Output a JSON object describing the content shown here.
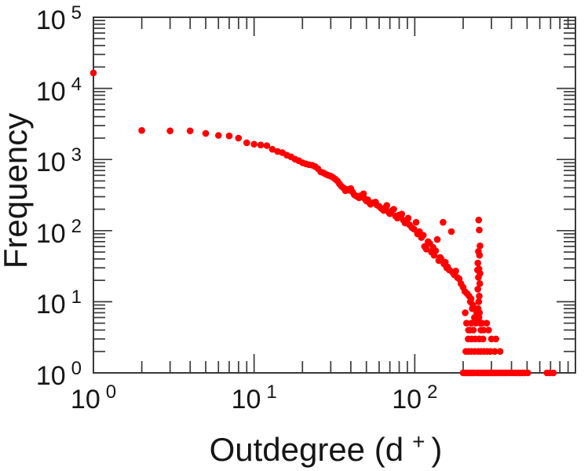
{
  "figure": {
    "background": "#ffffff"
  },
  "chart_data": {
    "type": "scatter",
    "title": "",
    "labels": {
      "ylabel": "Frequency",
      "xlabel_main": "Outdegree (d",
      "xlabel_sup": "+",
      "xlabel_close": ")",
      "xlabel_full": "Outdegree (d+)"
    },
    "x_scale": "log",
    "y_scale": "log",
    "xlim": [
      1,
      1000
    ],
    "ylim": [
      1,
      100000
    ],
    "tick_base": "10",
    "x_tick_exponents": [
      0,
      1,
      2
    ],
    "x_major_tick_exponents": [
      0,
      1,
      2,
      3
    ],
    "y_tick_exponents": [
      0,
      1,
      2,
      3,
      4,
      5
    ],
    "y_major_tick_exponents": [
      0,
      1,
      2,
      3,
      4,
      5
    ],
    "x_minor_decades": [
      0,
      1,
      2
    ],
    "y_minor_decades": [
      0,
      1,
      2,
      3,
      4
    ],
    "grid": false,
    "legend": "none",
    "background": "#ffffff",
    "axis_color": "#3a3a3a",
    "text_color": "#161616",
    "marker": {
      "shape": "circle",
      "color": "#ff0000",
      "radius_px": 4.3
    },
    "points": [
      [
        1,
        16500
      ],
      [
        2,
        2560
      ],
      [
        3,
        2530
      ],
      [
        4,
        2530
      ],
      [
        5,
        2330
      ],
      [
        6,
        2180
      ],
      [
        7,
        2150
      ],
      [
        8,
        2000
      ],
      [
        9,
        1720
      ],
      [
        10,
        1640
      ],
      [
        11,
        1600
      ],
      [
        12,
        1570
      ],
      [
        13,
        1390
      ],
      [
        14,
        1300
      ],
      [
        15,
        1250
      ],
      [
        16,
        1150
      ],
      [
        17,
        1090
      ],
      [
        18,
        1010
      ],
      [
        19,
        960
      ],
      [
        20,
        900
      ],
      [
        21,
        870
      ],
      [
        22,
        845
      ],
      [
        23,
        830
      ],
      [
        24,
        795
      ],
      [
        25,
        740
      ],
      [
        26,
        670
      ],
      [
        27,
        650
      ],
      [
        28,
        620
      ],
      [
        29,
        600
      ],
      [
        30,
        585
      ],
      [
        31,
        560
      ],
      [
        32,
        530
      ],
      [
        33,
        500
      ],
      [
        34,
        455
      ],
      [
        35,
        420
      ],
      [
        36,
        400
      ],
      [
        37,
        365
      ],
      [
        38,
        380
      ],
      [
        39,
        370
      ],
      [
        40,
        390
      ],
      [
        41,
        350
      ],
      [
        42,
        320
      ],
      [
        43,
        310
      ],
      [
        44,
        300
      ],
      [
        45,
        290
      ],
      [
        46,
        310
      ],
      [
        47,
        300
      ],
      [
        48,
        330
      ],
      [
        49,
        280
      ],
      [
        50,
        262
      ],
      [
        51,
        272
      ],
      [
        52,
        250
      ],
      [
        53,
        235
      ],
      [
        55,
        246
      ],
      [
        57,
        252
      ],
      [
        58,
        230
      ],
      [
        60,
        220
      ],
      [
        62,
        205
      ],
      [
        64,
        192
      ],
      [
        66,
        212
      ],
      [
        67,
        226
      ],
      [
        69,
        180
      ],
      [
        70,
        173
      ],
      [
        72,
        190
      ],
      [
        74,
        200
      ],
      [
        76,
        160
      ],
      [
        78,
        150
      ],
      [
        80,
        166
      ],
      [
        83,
        171
      ],
      [
        85,
        140
      ],
      [
        87,
        128
      ],
      [
        89,
        135
      ],
      [
        91,
        150
      ],
      [
        93,
        120
      ],
      [
        96,
        110
      ],
      [
        99,
        105
      ],
      [
        102,
        131
      ],
      [
        104,
        90
      ],
      [
        107,
        97
      ],
      [
        110,
        80
      ],
      [
        113,
        86
      ],
      [
        115,
        60
      ],
      [
        118,
        55
      ],
      [
        121,
        70
      ],
      [
        124,
        66
      ],
      [
        127,
        50
      ],
      [
        130,
        58
      ],
      [
        132,
        45
      ],
      [
        135,
        52
      ],
      [
        138,
        75
      ],
      [
        141,
        38
      ],
      [
        144,
        42
      ],
      [
        146,
        40
      ],
      [
        150,
        131
      ],
      [
        152,
        34
      ],
      [
        155,
        36
      ],
      [
        158,
        30
      ],
      [
        160,
        31
      ],
      [
        164,
        28
      ],
      [
        169,
        97
      ],
      [
        172,
        26
      ],
      [
        176,
        24
      ],
      [
        180,
        27
      ],
      [
        184,
        22
      ],
      [
        189,
        21
      ],
      [
        194,
        18
      ],
      [
        200,
        16
      ],
      [
        205,
        14
      ],
      [
        212,
        13
      ],
      [
        218,
        12
      ],
      [
        222,
        10
      ],
      [
        224,
        11
      ],
      [
        228,
        8
      ],
      [
        230,
        9
      ],
      [
        235,
        6
      ],
      [
        237,
        8
      ],
      [
        240,
        5
      ],
      [
        243,
        7
      ],
      [
        246,
        6
      ],
      [
        206,
        7
      ],
      [
        210,
        5
      ],
      [
        216,
        4
      ],
      [
        250,
        141
      ],
      [
        252,
        102
      ],
      [
        255,
        61
      ],
      [
        249,
        51
      ],
      [
        253,
        45
      ],
      [
        247,
        35
      ],
      [
        246,
        28
      ],
      [
        251,
        29
      ],
      [
        255,
        25
      ],
      [
        249,
        22
      ],
      [
        254,
        18
      ],
      [
        247,
        15
      ],
      [
        252,
        12
      ],
      [
        250,
        10
      ],
      [
        248,
        8
      ],
      [
        253,
        7
      ],
      [
        251,
        6
      ],
      [
        256,
        5
      ],
      [
        258,
        4
      ],
      [
        225,
        5
      ],
      [
        262,
        5
      ],
      [
        280,
        5
      ],
      [
        220,
        4
      ],
      [
        232,
        4
      ],
      [
        268,
        4
      ],
      [
        288,
        4
      ],
      [
        215,
        3
      ],
      [
        226,
        3
      ],
      [
        238,
        3
      ],
      [
        252,
        3
      ],
      [
        266,
        3
      ],
      [
        300,
        3
      ],
      [
        320,
        3
      ],
      [
        208,
        2
      ],
      [
        216,
        2
      ],
      [
        225,
        2
      ],
      [
        236,
        2
      ],
      [
        248,
        2
      ],
      [
        258,
        2
      ],
      [
        270,
        2
      ],
      [
        282,
        2
      ],
      [
        295,
        2
      ],
      [
        315,
        2
      ],
      [
        340,
        2
      ],
      [
        200,
        1
      ],
      [
        205,
        1
      ],
      [
        209,
        1
      ],
      [
        214,
        1
      ],
      [
        218,
        1
      ],
      [
        223,
        1
      ],
      [
        228,
        1
      ],
      [
        234,
        1
      ],
      [
        245,
        1
      ],
      [
        250,
        1
      ],
      [
        256,
        1
      ],
      [
        262,
        1
      ],
      [
        268,
        1
      ],
      [
        274,
        1
      ],
      [
        281,
        1
      ],
      [
        288,
        1
      ],
      [
        294,
        1
      ],
      [
        301,
        1
      ],
      [
        308,
        1
      ],
      [
        315,
        1
      ],
      [
        322,
        1
      ],
      [
        331,
        1
      ],
      [
        341,
        1
      ],
      [
        350,
        1
      ],
      [
        360,
        1
      ],
      [
        370,
        1
      ],
      [
        381,
        1
      ],
      [
        395,
        1
      ],
      [
        410,
        1
      ],
      [
        422,
        1
      ],
      [
        434,
        1
      ],
      [
        445,
        1
      ],
      [
        455,
        1
      ],
      [
        469,
        1
      ],
      [
        483,
        1
      ],
      [
        506,
        1
      ],
      [
        665,
        1
      ],
      [
        695,
        1
      ],
      [
        730,
        1
      ]
    ]
  }
}
